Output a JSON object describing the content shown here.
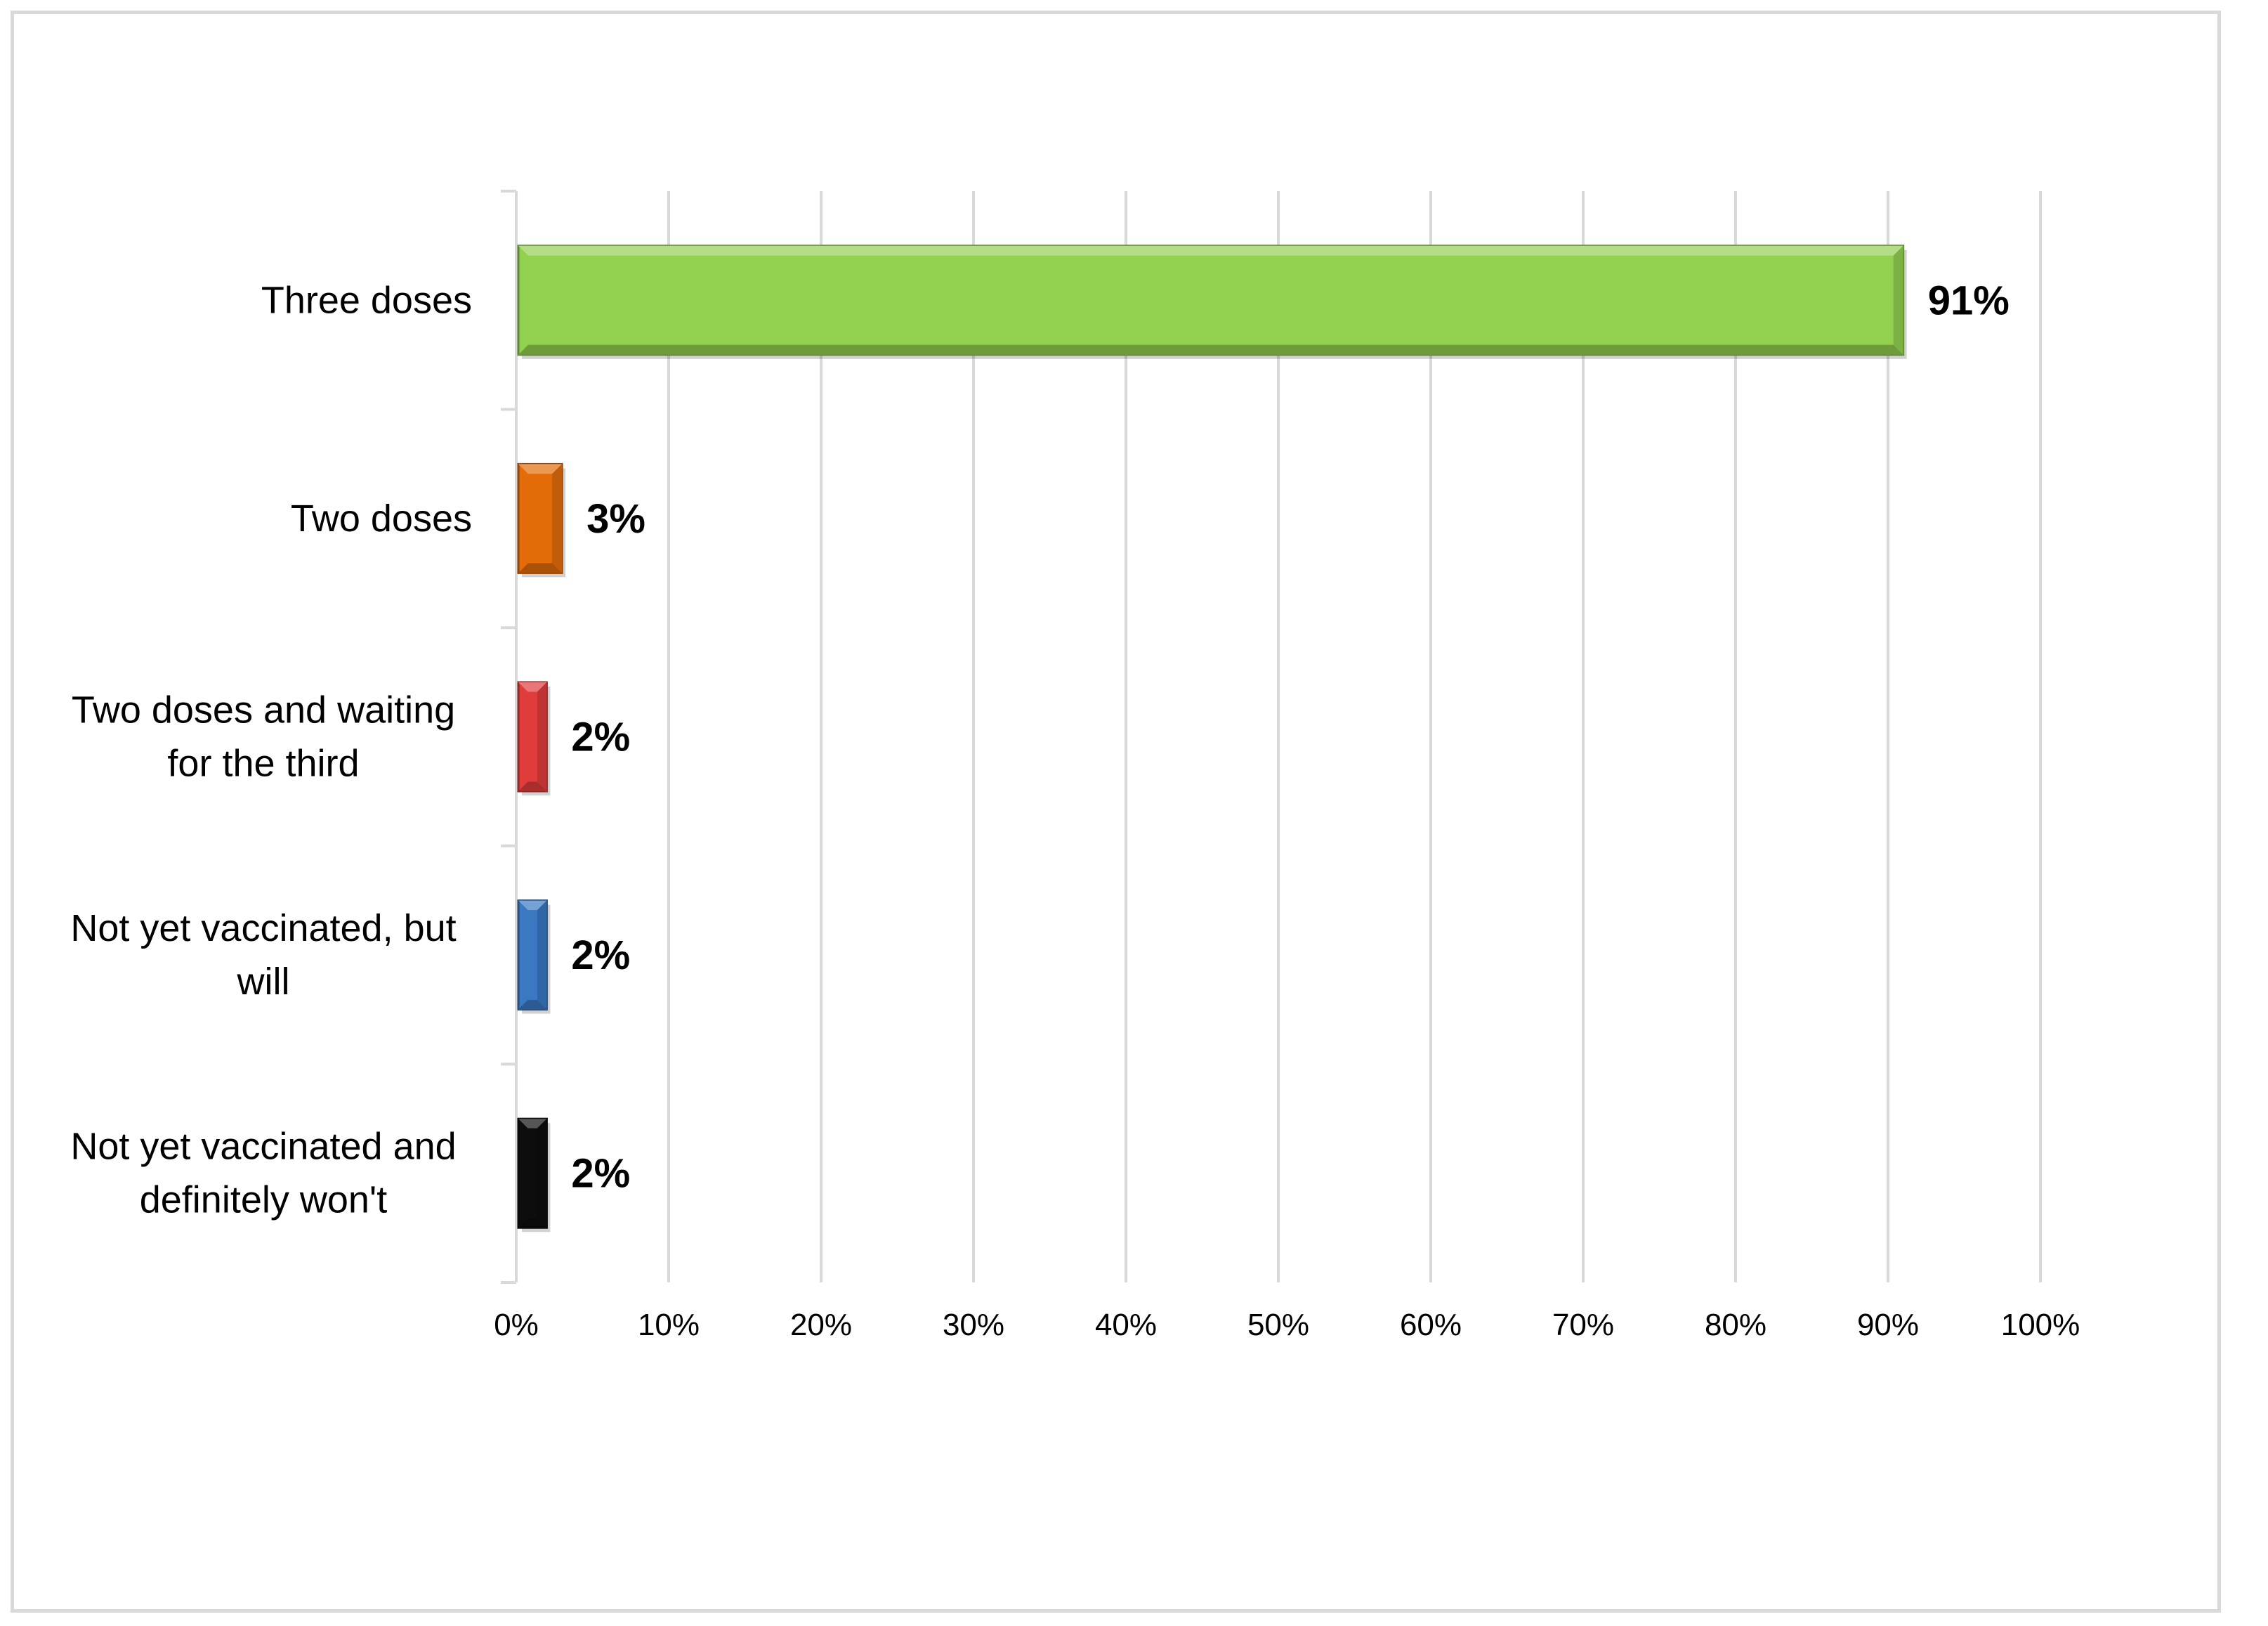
{
  "chart_data": {
    "type": "bar",
    "orientation": "horizontal",
    "categories": [
      [
        "Three doses"
      ],
      [
        "Two doses"
      ],
      [
        "Two doses and waiting",
        "for the third"
      ],
      [
        "Not yet vaccinated, but",
        "will"
      ],
      [
        "Not yet vaccinated and",
        "definitely won't"
      ]
    ],
    "values": [
      91,
      3,
      2,
      2,
      2
    ],
    "value_labels": [
      "91%",
      "3%",
      "2%",
      "2%",
      "2%"
    ],
    "colors": [
      "#92d050",
      "#e36c09",
      "#e03c3c",
      "#3a78c2",
      "#0d0d0d"
    ],
    "xlim": [
      0,
      100
    ],
    "x_ticks": [
      0,
      10,
      20,
      30,
      40,
      50,
      60,
      70,
      80,
      90,
      100
    ],
    "x_tick_labels": [
      "0%",
      "10%",
      "20%",
      "30%",
      "40%",
      "50%",
      "60%",
      "70%",
      "80%",
      "90%",
      "100%"
    ],
    "grid": "vertical",
    "legend": "none",
    "title": "",
    "xlabel": "",
    "ylabel": ""
  }
}
